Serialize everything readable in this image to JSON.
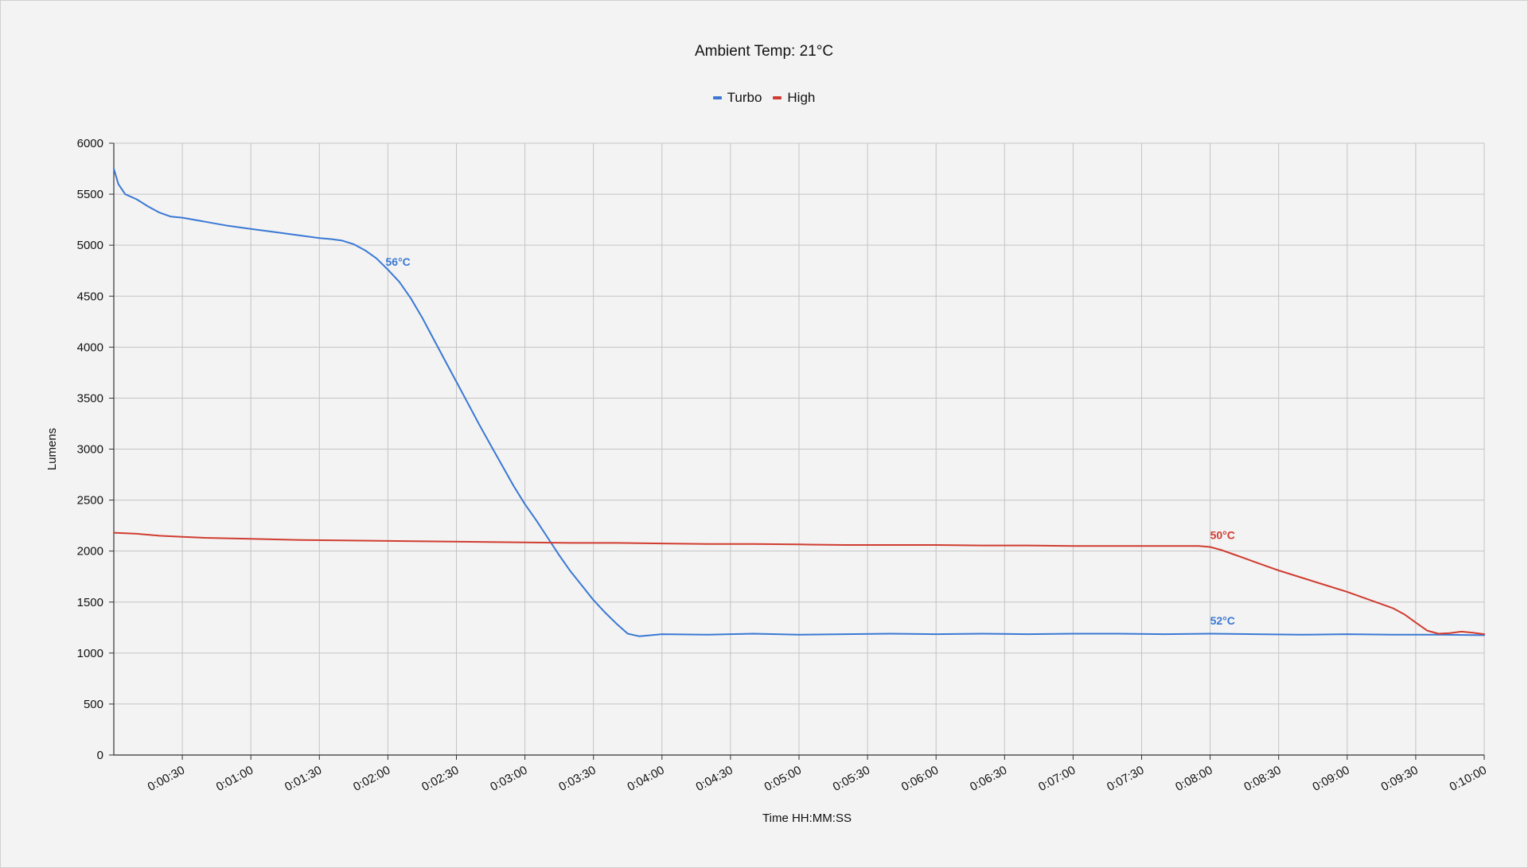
{
  "chart_data": {
    "type": "line",
    "title": "Ambient Temp: 21°C",
    "xlabel": "Time HH:MM:SS",
    "ylabel": "Lumens",
    "x_unit": "seconds",
    "xlim": [
      0,
      600
    ],
    "ylim": [
      0,
      6000
    ],
    "y_ticks": [
      0,
      500,
      1000,
      1500,
      2000,
      2500,
      3000,
      3500,
      4000,
      4500,
      5000,
      5500,
      6000
    ],
    "x_ticks": [
      {
        "value": 30,
        "label": "0:00:30"
      },
      {
        "value": 60,
        "label": "0:01:00"
      },
      {
        "value": 90,
        "label": "0:01:30"
      },
      {
        "value": 120,
        "label": "0:02:00"
      },
      {
        "value": 150,
        "label": "0:02:30"
      },
      {
        "value": 180,
        "label": "0:03:00"
      },
      {
        "value": 210,
        "label": "0:03:30"
      },
      {
        "value": 240,
        "label": "0:04:00"
      },
      {
        "value": 270,
        "label": "0:04:30"
      },
      {
        "value": 300,
        "label": "0:05:00"
      },
      {
        "value": 330,
        "label": "0:05:30"
      },
      {
        "value": 360,
        "label": "0:06:00"
      },
      {
        "value": 390,
        "label": "0:06:30"
      },
      {
        "value": 420,
        "label": "0:07:00"
      },
      {
        "value": 450,
        "label": "0:07:30"
      },
      {
        "value": 480,
        "label": "0:08:00"
      },
      {
        "value": 510,
        "label": "0:08:30"
      },
      {
        "value": 540,
        "label": "0:09:00"
      },
      {
        "value": 570,
        "label": "0:09:30"
      },
      {
        "value": 600,
        "label": "0:10:00"
      }
    ],
    "grid": true,
    "legend_position": "top-center",
    "series": [
      {
        "name": "Turbo",
        "color": "#3a78d4",
        "points": [
          [
            0,
            5750
          ],
          [
            2,
            5600
          ],
          [
            5,
            5500
          ],
          [
            10,
            5450
          ],
          [
            15,
            5380
          ],
          [
            20,
            5320
          ],
          [
            25,
            5280
          ],
          [
            30,
            5270
          ],
          [
            40,
            5230
          ],
          [
            50,
            5190
          ],
          [
            60,
            5160
          ],
          [
            70,
            5130
          ],
          [
            80,
            5100
          ],
          [
            90,
            5070
          ],
          [
            95,
            5060
          ],
          [
            100,
            5045
          ],
          [
            105,
            5010
          ],
          [
            110,
            4950
          ],
          [
            115,
            4870
          ],
          [
            120,
            4760
          ],
          [
            125,
            4640
          ],
          [
            130,
            4480
          ],
          [
            135,
            4290
          ],
          [
            140,
            4080
          ],
          [
            145,
            3870
          ],
          [
            150,
            3660
          ],
          [
            155,
            3450
          ],
          [
            160,
            3240
          ],
          [
            165,
            3040
          ],
          [
            170,
            2840
          ],
          [
            175,
            2640
          ],
          [
            180,
            2460
          ],
          [
            185,
            2300
          ],
          [
            190,
            2130
          ],
          [
            195,
            1960
          ],
          [
            200,
            1800
          ],
          [
            205,
            1660
          ],
          [
            210,
            1520
          ],
          [
            215,
            1400
          ],
          [
            220,
            1290
          ],
          [
            225,
            1190
          ],
          [
            230,
            1165
          ],
          [
            240,
            1185
          ],
          [
            260,
            1180
          ],
          [
            280,
            1190
          ],
          [
            300,
            1180
          ],
          [
            320,
            1185
          ],
          [
            340,
            1190
          ],
          [
            360,
            1185
          ],
          [
            380,
            1190
          ],
          [
            400,
            1185
          ],
          [
            420,
            1190
          ],
          [
            440,
            1190
          ],
          [
            460,
            1185
          ],
          [
            480,
            1190
          ],
          [
            500,
            1185
          ],
          [
            520,
            1180
          ],
          [
            540,
            1185
          ],
          [
            560,
            1180
          ],
          [
            580,
            1180
          ],
          [
            600,
            1175
          ]
        ]
      },
      {
        "name": "High",
        "color": "#d03c30",
        "points": [
          [
            0,
            2180
          ],
          [
            10,
            2170
          ],
          [
            20,
            2150
          ],
          [
            30,
            2140
          ],
          [
            40,
            2130
          ],
          [
            60,
            2120
          ],
          [
            80,
            2110
          ],
          [
            100,
            2105
          ],
          [
            120,
            2100
          ],
          [
            140,
            2095
          ],
          [
            160,
            2090
          ],
          [
            180,
            2085
          ],
          [
            200,
            2080
          ],
          [
            220,
            2080
          ],
          [
            240,
            2075
          ],
          [
            260,
            2070
          ],
          [
            280,
            2070
          ],
          [
            300,
            2065
          ],
          [
            320,
            2060
          ],
          [
            340,
            2060
          ],
          [
            360,
            2060
          ],
          [
            380,
            2055
          ],
          [
            400,
            2055
          ],
          [
            420,
            2050
          ],
          [
            440,
            2050
          ],
          [
            460,
            2050
          ],
          [
            475,
            2050
          ],
          [
            480,
            2040
          ],
          [
            485,
            2010
          ],
          [
            490,
            1970
          ],
          [
            495,
            1930
          ],
          [
            500,
            1890
          ],
          [
            505,
            1850
          ],
          [
            510,
            1810
          ],
          [
            520,
            1740
          ],
          [
            530,
            1670
          ],
          [
            540,
            1600
          ],
          [
            550,
            1520
          ],
          [
            560,
            1440
          ],
          [
            565,
            1380
          ],
          [
            570,
            1300
          ],
          [
            575,
            1220
          ],
          [
            580,
            1190
          ],
          [
            585,
            1195
          ],
          [
            590,
            1210
          ],
          [
            595,
            1200
          ],
          [
            600,
            1185
          ]
        ]
      }
    ],
    "annotations": [
      {
        "text": "56°C",
        "x": 119,
        "y": 4800,
        "series": "Turbo"
      },
      {
        "text": "50°C",
        "x": 480,
        "y": 2120,
        "series": "High"
      },
      {
        "text": "52°C",
        "x": 480,
        "y": 1280,
        "series": "Turbo"
      }
    ]
  }
}
